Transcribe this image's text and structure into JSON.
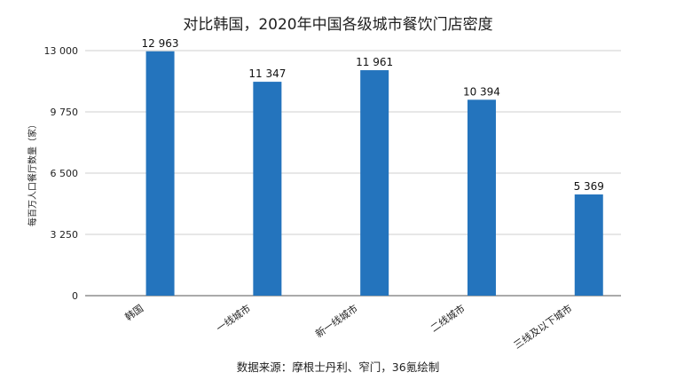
{
  "chart_data": {
    "type": "bar",
    "title": "对比韩国，2020年中国各级城市餐饮门店密度",
    "ylabel": "每百万人口餐厅数量（家）",
    "xlabel": "",
    "categories": [
      "韩国",
      "一线城市",
      "新一线城市",
      "二线城市",
      "三线及以下城市"
    ],
    "values": [
      12963,
      11347,
      11961,
      10394,
      5369
    ],
    "value_labels": [
      "12 963",
      "11 347",
      "11 961",
      "10 394",
      "5 369"
    ],
    "yticks": [
      0,
      3250,
      6500,
      9750,
      13000
    ],
    "ytick_labels": [
      "0",
      "3 250",
      "6 500",
      "9 750",
      "13 000"
    ],
    "ylim": [
      0,
      13000
    ],
    "grid": true,
    "bar_color": "#2474bd",
    "source": "数据来源：摩根士丹利、窄门，36氪绘制"
  }
}
